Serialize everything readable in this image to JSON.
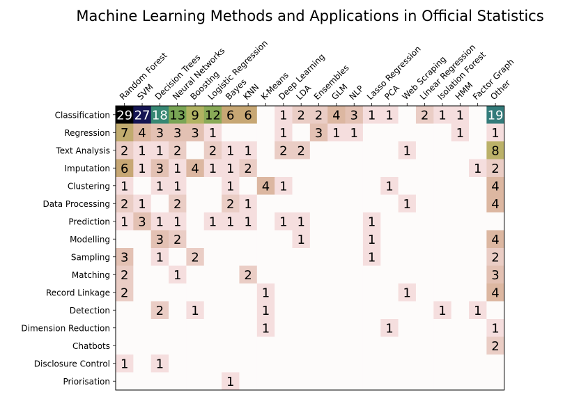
{
  "chart_data": {
    "type": "heatmap",
    "title": "Machine Learning Methods and Applications in Official Statistics",
    "xlabel": "",
    "ylabel": "",
    "colormap": "gist_earth_r",
    "legend": "none",
    "grid": false,
    "x_categories": [
      "Random Forest",
      "SVM",
      "Decision Trees",
      "Neural Networks",
      "Boosting",
      "Logistic Regression",
      "Bayes",
      "KNN",
      "K-Means",
      "Deep Learning",
      "LDA",
      "Ensembles",
      "GLM",
      "NLP",
      "Lasso Regression",
      "PCA",
      "Web Scraping",
      "Linear Regression",
      "Isolation Forest",
      "HMM",
      "Factor Graph",
      "Other"
    ],
    "y_categories": [
      "Classification",
      "Regression",
      "Text Analysis",
      "Imputation",
      "Clustering",
      "Data Processing",
      "Prediction",
      "Modelling",
      "Sampling",
      "Matching",
      "Record Linkage",
      "Detection",
      "Dimension Reduction",
      "Chatbots",
      "Disclosure Control",
      "Priorisation"
    ],
    "values": [
      [
        29,
        27,
        18,
        13,
        9,
        12,
        6,
        6,
        0,
        1,
        2,
        2,
        4,
        3,
        1,
        1,
        0,
        2,
        1,
        1,
        0,
        19
      ],
      [
        7,
        4,
        3,
        3,
        3,
        1,
        0,
        0,
        0,
        1,
        0,
        3,
        1,
        1,
        0,
        0,
        0,
        0,
        0,
        1,
        0,
        1
      ],
      [
        2,
        1,
        1,
        2,
        0,
        2,
        1,
        1,
        0,
        2,
        2,
        0,
        0,
        0,
        0,
        0,
        1,
        0,
        0,
        0,
        0,
        8
      ],
      [
        6,
        1,
        3,
        1,
        4,
        1,
        1,
        2,
        0,
        0,
        0,
        0,
        0,
        0,
        0,
        0,
        0,
        0,
        0,
        0,
        1,
        2
      ],
      [
        1,
        0,
        1,
        1,
        0,
        0,
        1,
        0,
        4,
        1,
        0,
        0,
        0,
        0,
        0,
        1,
        0,
        0,
        0,
        0,
        0,
        4
      ],
      [
        2,
        1,
        0,
        2,
        0,
        0,
        2,
        1,
        0,
        0,
        0,
        0,
        0,
        0,
        0,
        0,
        1,
        0,
        0,
        0,
        0,
        4
      ],
      [
        1,
        3,
        1,
        1,
        0,
        1,
        1,
        1,
        0,
        1,
        1,
        0,
        0,
        0,
        1,
        0,
        0,
        0,
        0,
        0,
        0,
        0
      ],
      [
        0,
        0,
        3,
        2,
        0,
        0,
        0,
        0,
        0,
        0,
        1,
        0,
        0,
        0,
        1,
        0,
        0,
        0,
        0,
        0,
        0,
        4
      ],
      [
        3,
        0,
        1,
        0,
        2,
        0,
        0,
        0,
        0,
        0,
        0,
        0,
        0,
        0,
        1,
        0,
        0,
        0,
        0,
        0,
        0,
        2
      ],
      [
        2,
        0,
        0,
        1,
        0,
        0,
        0,
        2,
        0,
        0,
        0,
        0,
        0,
        0,
        0,
        0,
        0,
        0,
        0,
        0,
        0,
        3
      ],
      [
        2,
        0,
        0,
        0,
        0,
        0,
        0,
        0,
        1,
        0,
        0,
        0,
        0,
        0,
        0,
        0,
        1,
        0,
        0,
        0,
        0,
        4
      ],
      [
        0,
        0,
        2,
        0,
        1,
        0,
        0,
        0,
        1,
        0,
        0,
        0,
        0,
        0,
        0,
        0,
        0,
        0,
        1,
        0,
        1,
        0
      ],
      [
        0,
        0,
        0,
        0,
        0,
        0,
        0,
        0,
        1,
        0,
        0,
        0,
        0,
        0,
        0,
        1,
        0,
        0,
        0,
        0,
        0,
        1
      ],
      [
        0,
        0,
        0,
        0,
        0,
        0,
        0,
        0,
        0,
        0,
        0,
        0,
        0,
        0,
        0,
        0,
        0,
        0,
        0,
        0,
        0,
        2
      ],
      [
        1,
        0,
        1,
        0,
        0,
        0,
        0,
        0,
        0,
        0,
        0,
        0,
        0,
        0,
        0,
        0,
        0,
        0,
        0,
        0,
        0,
        0
      ],
      [
        0,
        0,
        0,
        0,
        0,
        0,
        1,
        0,
        0,
        0,
        0,
        0,
        0,
        0,
        0,
        0,
        0,
        0,
        0,
        0,
        0,
        0
      ]
    ],
    "color_range": [
      0,
      29
    ],
    "show_zero_labels": false
  }
}
